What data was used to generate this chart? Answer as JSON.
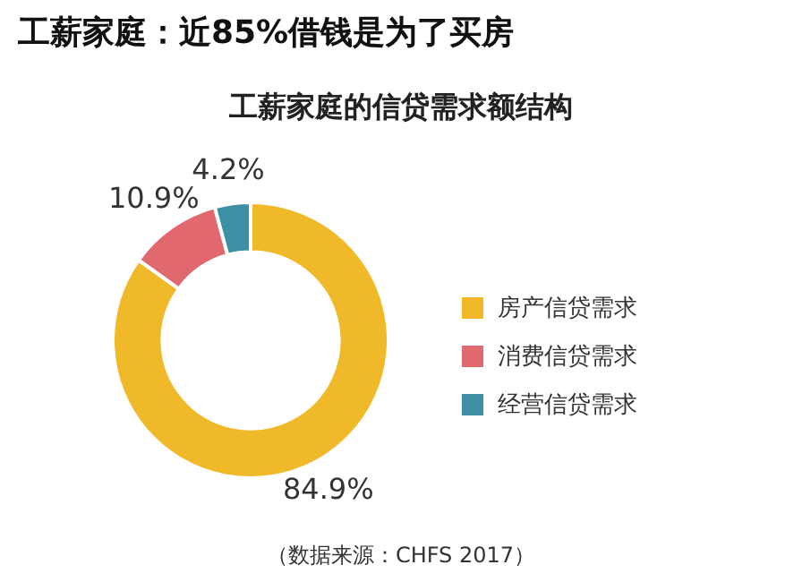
{
  "chart_data": {
    "type": "donut",
    "title": "工薪家庭：近85%借钱是为了买房",
    "subtitle": "工薪家庭的信贷需求额结构",
    "categories": [
      "房产信贷需求",
      "消费信贷需求",
      "经营信贷需求"
    ],
    "values": [
      84.9,
      10.9,
      4.2
    ],
    "colors": [
      "#f0b92a",
      "#e0686e",
      "#3d8fa3"
    ],
    "value_labels": [
      "84.9%",
      "10.9%",
      "4.2%"
    ],
    "legend": "right",
    "annotations": [
      "（数据来源：CHFS 2017）"
    ]
  }
}
